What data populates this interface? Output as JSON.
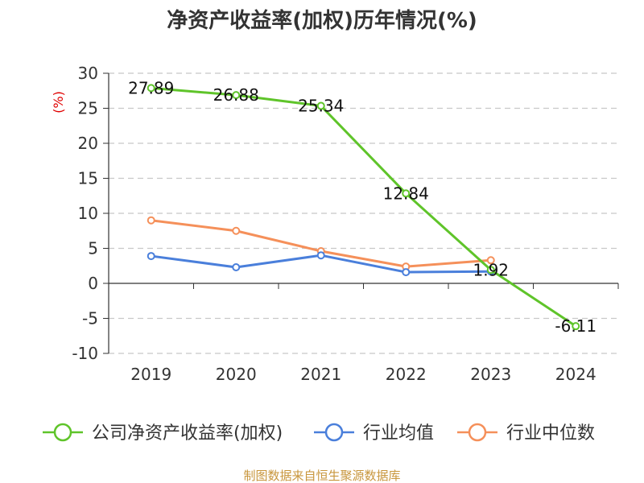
{
  "chart_data": {
    "type": "line",
    "title": "净资产收益率(加权)历年情况(%)",
    "ylabel": "(%)",
    "categories": [
      "2019",
      "2020",
      "2021",
      "2022",
      "2023",
      "2024"
    ],
    "ylim": [
      -10,
      30
    ],
    "yticks": [
      30,
      25,
      20,
      15,
      10,
      5,
      0,
      -5,
      -10
    ],
    "ytick_labels": [
      "30",
      "25",
      "20",
      "15",
      "10",
      "5",
      "0",
      "-5",
      "-10"
    ],
    "grid": true,
    "legend_position": "bottom",
    "series": [
      {
        "name": "公司净资产收益率(加权)",
        "color": "#5fc42a",
        "values": [
          27.89,
          26.88,
          25.34,
          12.84,
          1.92,
          -6.11
        ],
        "labels": [
          "27.89",
          "26.88",
          "25.34",
          "12.84",
          "1.92",
          "-6.11"
        ]
      },
      {
        "name": "行业均值",
        "color": "#4a7fdb",
        "values": [
          3.9,
          2.3,
          4.0,
          1.6,
          1.7,
          null
        ]
      },
      {
        "name": "行业中位数",
        "color": "#f5905a",
        "values": [
          9.0,
          7.5,
          4.6,
          2.4,
          3.3,
          null
        ]
      }
    ],
    "source": "制图数据来自恒生聚源数据库"
  }
}
